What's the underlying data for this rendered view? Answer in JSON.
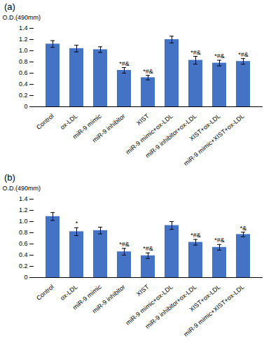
{
  "chart_data": [
    {
      "type": "bar",
      "title": "(a)",
      "ylabel": "O.D.(490mm)",
      "categories": [
        "Control",
        "ox-LDL",
        "miR-9 mimic",
        "miR-9 inhibitor",
        "XIST",
        "miR-9 mimic+ox-LDL",
        "miR-9 inhibitor+ox-LDL",
        "XIST+ox-LDL",
        "miR-9 mimic+XIST+ox-LDL"
      ],
      "values": [
        1.12,
        1.04,
        1.02,
        0.65,
        0.52,
        1.2,
        0.83,
        0.78,
        0.81
      ],
      "errors": [
        0.06,
        0.06,
        0.05,
        0.05,
        0.04,
        0.06,
        0.07,
        0.05,
        0.05
      ],
      "annotations": [
        {
          "category": "miR-9 inhibitor",
          "text": "*#&"
        },
        {
          "category": "XIST",
          "text": "*#&"
        },
        {
          "category": "miR-9 inhibitor+ox-LDL",
          "text": "*#&"
        },
        {
          "category": "XIST+ox-LDL",
          "text": "*#&"
        },
        {
          "category": "miR-9 mimic+XIST+ox-LDL",
          "text": "*#&"
        }
      ],
      "color": "#4472C4",
      "ylim": [
        0,
        1.4
      ],
      "yticks": [
        0,
        0.2,
        0.4,
        0.6,
        0.8,
        {
          "value": 1.0,
          "label": "1.0"
        },
        1.2,
        1.4
      ],
      "grid": false
    },
    {
      "type": "bar",
      "title": "(b)",
      "ylabel": "O.D.(490mm)",
      "categories": [
        "Control",
        "ox-LDL",
        "miR-9 mimic",
        "miR-9 inhibitor",
        "XIST",
        "miR-9 mimic+ox-LDL",
        "miR-9 inhibitor+ox-LDL",
        "XIST+ox-LDL",
        "miR-9 mimic+XIST+ox-LDL"
      ],
      "values": [
        1.09,
        0.82,
        0.84,
        0.46,
        0.39,
        0.93,
        0.63,
        0.54,
        0.77
      ],
      "errors": [
        0.07,
        0.07,
        0.06,
        0.06,
        0.05,
        0.07,
        0.05,
        0.05,
        0.04
      ],
      "annotations": [
        {
          "category": "ox-LDL",
          "text": "*"
        },
        {
          "category": "miR-9 inhibitor",
          "text": "*#&"
        },
        {
          "category": "XIST",
          "text": "*#&"
        },
        {
          "category": "miR-9 inhibitor+ox-LDL",
          "text": "*#&"
        },
        {
          "category": "XIST+ox-LDL",
          "text": "*#&"
        },
        {
          "category": "miR-9 mimic+XIST+ox-LDL",
          "text": "*&"
        }
      ],
      "color": "#4472C4",
      "ylim": [
        0,
        1.4
      ],
      "yticks": [
        0,
        0.2,
        0.4,
        0.6,
        0.8,
        {
          "value": 1.0,
          "label": "1.0"
        },
        1.2,
        1.4
      ],
      "grid": false
    }
  ]
}
